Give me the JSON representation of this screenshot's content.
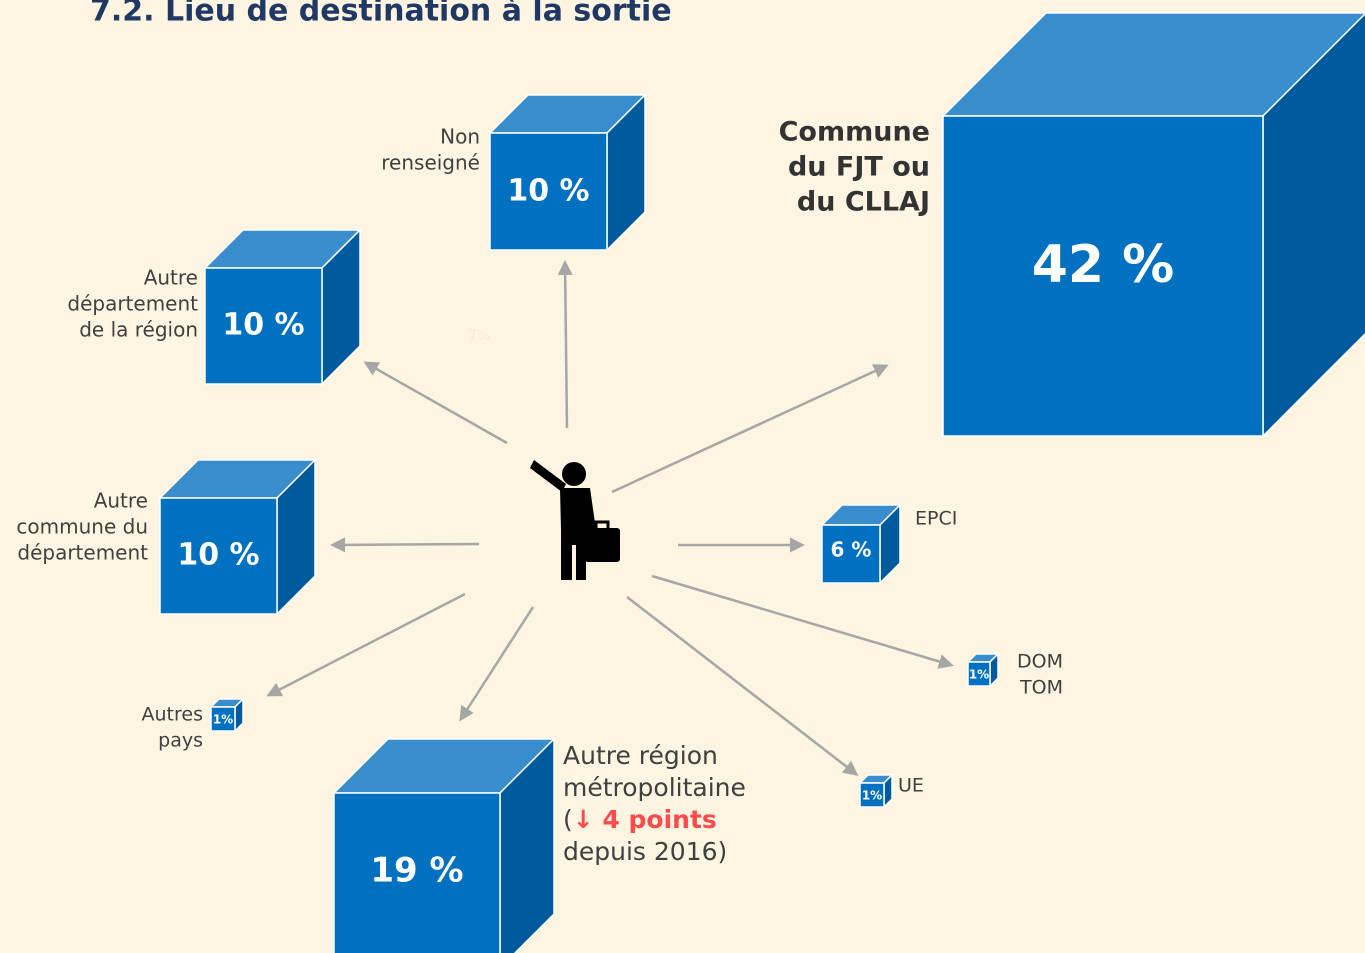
{
  "title": "7.2. Lieu de destination à la sortie",
  "stray_label": "7%",
  "nodes": [
    {
      "lines": [
        "Non",
        "renseigné"
      ],
      "value": "10 %"
    },
    {
      "lines": [
        "Autre",
        "département",
        "de la région"
      ],
      "value": "10 %"
    },
    {
      "lines": [
        "Autre",
        "commune du",
        "département"
      ],
      "value": "10 %"
    },
    {
      "lines": [
        "Commune",
        "du FJT ou",
        "du CLLAJ"
      ],
      "value": "42 %"
    },
    {
      "lines": [
        "EPCI"
      ],
      "value": "6 %"
    },
    {
      "lines": [
        "DOM",
        "TOM"
      ],
      "value": "1%"
    },
    {
      "lines": [
        "UE"
      ],
      "value": "1%"
    },
    {
      "lines": [
        "Autres",
        "pays"
      ],
      "value": "1%"
    },
    {
      "lines": [
        "Autre région",
        "métropolitaine"
      ],
      "value": "19 %",
      "change": {
        "prefix": "(",
        "text": "↓ 4 points",
        "suffix": "depuis 2016)"
      }
    }
  ]
}
